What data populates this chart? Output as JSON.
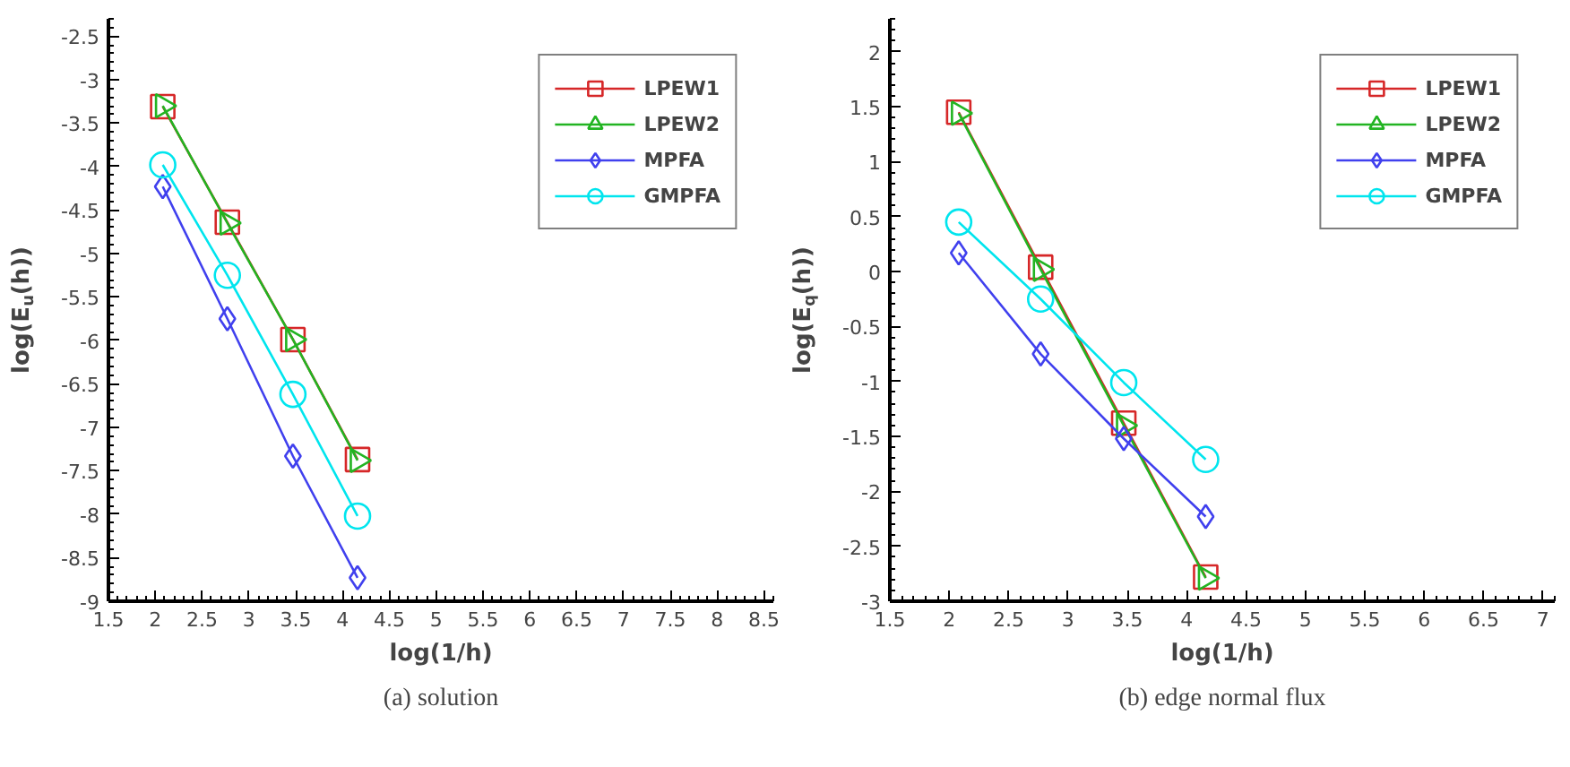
{
  "chart_data": [
    {
      "type": "line",
      "xlabel": "log(1/h)",
      "ylabel": "log(E$_{u}$(h))",
      "annotations": [
        "(a) solution"
      ],
      "xlim": [
        1.5,
        8.6
      ],
      "ylim": [
        -9,
        -2.3
      ],
      "xticks": [
        1.5,
        2,
        2.5,
        3,
        3.5,
        4,
        4.5,
        5,
        5.5,
        6,
        6.5,
        7,
        7.5,
        8,
        8.5
      ],
      "yticks": [
        -9,
        -8.5,
        -8,
        -7.5,
        -7,
        -6.5,
        -6,
        -5.5,
        -5,
        -4.5,
        -4,
        -3.5,
        -3,
        -2.5
      ],
      "x": [
        2.08,
        2.77,
        3.47,
        4.16
      ],
      "grid": false,
      "legend": "top right",
      "line_style": "solid",
      "series": [
        {
          "name": "LPEW1",
          "color": "#d62728",
          "marker": "square",
          "values": [
            -3.31,
            -4.64,
            -5.99,
            -7.37
          ]
        },
        {
          "name": "LPEW2",
          "color": "#22b422",
          "marker": "triangle",
          "values": [
            -3.3,
            -4.65,
            -5.99,
            -7.38
          ]
        },
        {
          "name": "MPFA",
          "color": "#4040ee",
          "marker": "diamond",
          "values": [
            -4.23,
            -5.75,
            -7.33,
            -8.73
          ]
        },
        {
          "name": "GMPFA",
          "color": "#00e5ee",
          "marker": "circle",
          "values": [
            -3.98,
            -5.25,
            -6.62,
            -8.02
          ]
        }
      ]
    },
    {
      "type": "line",
      "xlabel": "log(1/h)",
      "ylabel": "log(E$_{q}$(h))",
      "annotations": [
        "(b) edge normal flux"
      ],
      "xlim": [
        1.5,
        7.1
      ],
      "ylim": [
        -3,
        2.3
      ],
      "xticks": [
        1.5,
        2,
        2.5,
        3,
        3.5,
        4,
        4.5,
        5,
        5.5,
        6,
        6.5,
        7
      ],
      "yticks": [
        -3,
        -2.5,
        -2,
        -1.5,
        -1,
        -0.5,
        0,
        0.5,
        1,
        1.5,
        2
      ],
      "x": [
        2.08,
        2.77,
        3.47,
        4.16
      ],
      "grid": false,
      "legend": "top right",
      "line_style": "solid",
      "series": [
        {
          "name": "LPEW1",
          "color": "#d62728",
          "marker": "square",
          "values": [
            1.45,
            0.04,
            -1.38,
            -2.78
          ]
        },
        {
          "name": "LPEW2",
          "color": "#22b422",
          "marker": "triangle",
          "values": [
            1.44,
            0.02,
            -1.4,
            -2.79
          ]
        },
        {
          "name": "MPFA",
          "color": "#4040ee",
          "marker": "diamond",
          "values": [
            0.17,
            -0.75,
            -1.52,
            -2.23
          ]
        },
        {
          "name": "GMPFA",
          "color": "#00e5ee",
          "marker": "circle",
          "values": [
            0.45,
            -0.25,
            -1.01,
            -1.71
          ]
        }
      ]
    }
  ]
}
